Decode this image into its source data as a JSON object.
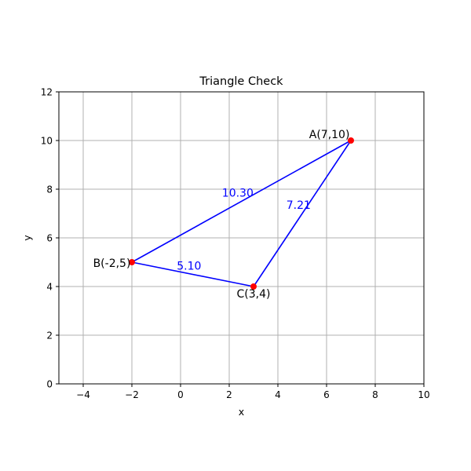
{
  "chart_data": {
    "type": "line",
    "title": "Triangle Check",
    "xlabel": "x",
    "ylabel": "y",
    "xlim": [
      -5,
      10
    ],
    "ylim": [
      0,
      12
    ],
    "xticks": [
      -4,
      -2,
      0,
      2,
      4,
      6,
      8,
      10
    ],
    "yticks": [
      0,
      2,
      4,
      6,
      8,
      10,
      12
    ],
    "grid": true,
    "points": [
      {
        "id": "A",
        "label": "A(7,10)",
        "x": 7,
        "y": 10
      },
      {
        "id": "B",
        "label": "B(-2,5)",
        "x": -2,
        "y": 5
      },
      {
        "id": "C",
        "label": "C(3,4)",
        "x": 3,
        "y": 4
      }
    ],
    "edges": [
      {
        "from": "A",
        "to": "B",
        "length": "10.30"
      },
      {
        "from": "B",
        "to": "C",
        "length": "5.10"
      },
      {
        "from": "C",
        "to": "A",
        "length": "7.21"
      }
    ],
    "colors": {
      "line": "#0000ff",
      "point": "#ff0000",
      "edge_label": "#0000ff",
      "grid": "#b0b0b0"
    }
  }
}
